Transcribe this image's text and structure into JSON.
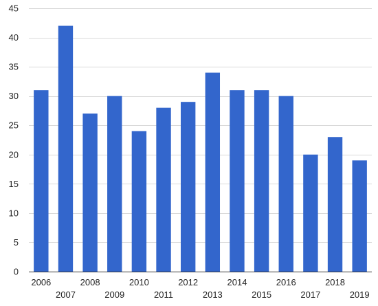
{
  "chart_data": {
    "type": "bar",
    "categories": [
      "2006",
      "2007",
      "2008",
      "2009",
      "2010",
      "2011",
      "2012",
      "2013",
      "2014",
      "2015",
      "2016",
      "2017",
      "2018",
      "2019"
    ],
    "values": [
      31,
      42,
      27,
      30,
      24,
      28,
      29,
      34,
      31,
      31,
      30,
      20,
      23,
      19
    ],
    "ylim": [
      0,
      45
    ],
    "yticks": [
      0,
      5,
      10,
      15,
      20,
      25,
      30,
      35,
      40,
      45
    ],
    "grid": true,
    "bar_color": "#3366cc",
    "grid_color": "#d9d9d9"
  }
}
